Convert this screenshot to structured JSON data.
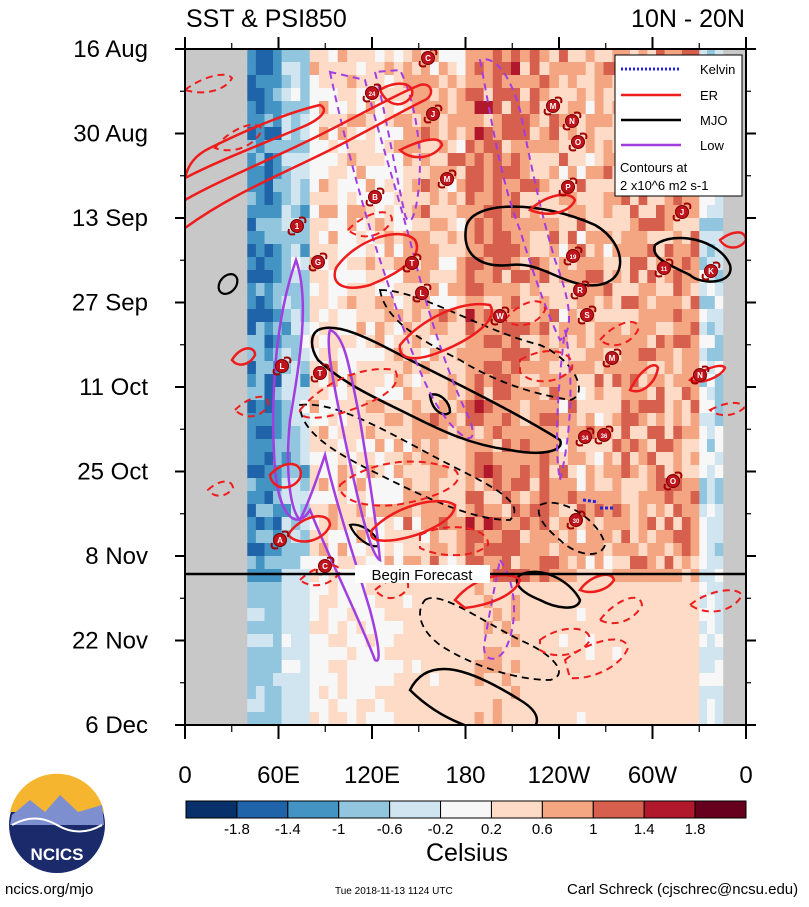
{
  "header": {
    "title_left": "SST & PSI850",
    "title_right": "10N - 20N"
  },
  "footer": {
    "logo_text": "NCICS",
    "url": "ncics.org/mjo",
    "timestamp": "Tue 2018-11-13 1124 UTC",
    "credit": "Carl Schreck (cjschrec@ncsu.edu)"
  },
  "chart_data": {
    "type": "heatmap",
    "title": "SST & PSI850",
    "subtitle": "10N - 20N",
    "y_ticks": [
      "16 Aug",
      "30 Aug",
      "13 Sep",
      "27 Sep",
      "11 Oct",
      "25 Oct",
      "8 Nov",
      "22 Nov",
      "6 Dec"
    ],
    "x_ticks": [
      "0",
      "60E",
      "120E",
      "180",
      "120W",
      "60W",
      "0"
    ],
    "x_range_deg_east": [
      0,
      360
    ],
    "y_range": [
      "2018-08-16",
      "2018-12-06"
    ],
    "forecast_start": "2018-11-12",
    "forecast_label": "Begin Forecast",
    "legend": {
      "placement": "top-right",
      "entries": [
        {
          "name": "Kelvin",
          "color": "#2323e0",
          "style": "dotted"
        },
        {
          "name": "ER",
          "color": "#ee1c1c",
          "style": "solid"
        },
        {
          "name": "MJO",
          "color": "#000000",
          "style": "solid"
        },
        {
          "name": "Low",
          "color": "#a23ee0",
          "style": "solid"
        }
      ],
      "note_lines": [
        "Contours at",
        "2 x10^6 m2 s-1"
      ]
    },
    "colorbar": {
      "label": "Celsius",
      "tick_labels": [
        "-1.8",
        "-1.4",
        "-1",
        "-0.6",
        "-0.2",
        "0.2",
        "0.6",
        "1",
        "1.4",
        "1.8"
      ],
      "colors": [
        "#08306b",
        "#1f63a8",
        "#4393c3",
        "#92c5de",
        "#d1e5f0",
        "#f7f7f7",
        "#fddbc7",
        "#f4a582",
        "#d6604d",
        "#b2182b",
        "#67001f"
      ]
    },
    "sst_anomaly_bands": [
      {
        "lon": [
          40,
          62
        ],
        "value": -1.2
      },
      {
        "lon": [
          62,
          80
        ],
        "value": -0.6
      },
      {
        "lon": [
          80,
          140
        ],
        "value": 0.3
      },
      {
        "lon": [
          140,
          180
        ],
        "value": 0.6
      },
      {
        "lon": [
          180,
          215
        ],
        "value": 1.0
      },
      {
        "lon": [
          215,
          240
        ],
        "value": 0.8
      },
      {
        "lon": [
          240,
          280
        ],
        "value": 0.6
      },
      {
        "lon": [
          280,
          330
        ],
        "value": 0.8
      },
      {
        "lon": [
          330,
          345
        ],
        "value": -0.4
      }
    ],
    "storm_markers": [
      "C",
      "24",
      "J",
      "M",
      "N",
      "O",
      "M",
      "B",
      "P",
      "J",
      "1",
      "G",
      "T",
      "19",
      "11",
      "K",
      "L",
      "R",
      "W",
      "S",
      "L",
      "M",
      "N",
      "T",
      "34",
      "36",
      "O",
      "30",
      "A",
      "C"
    ]
  }
}
